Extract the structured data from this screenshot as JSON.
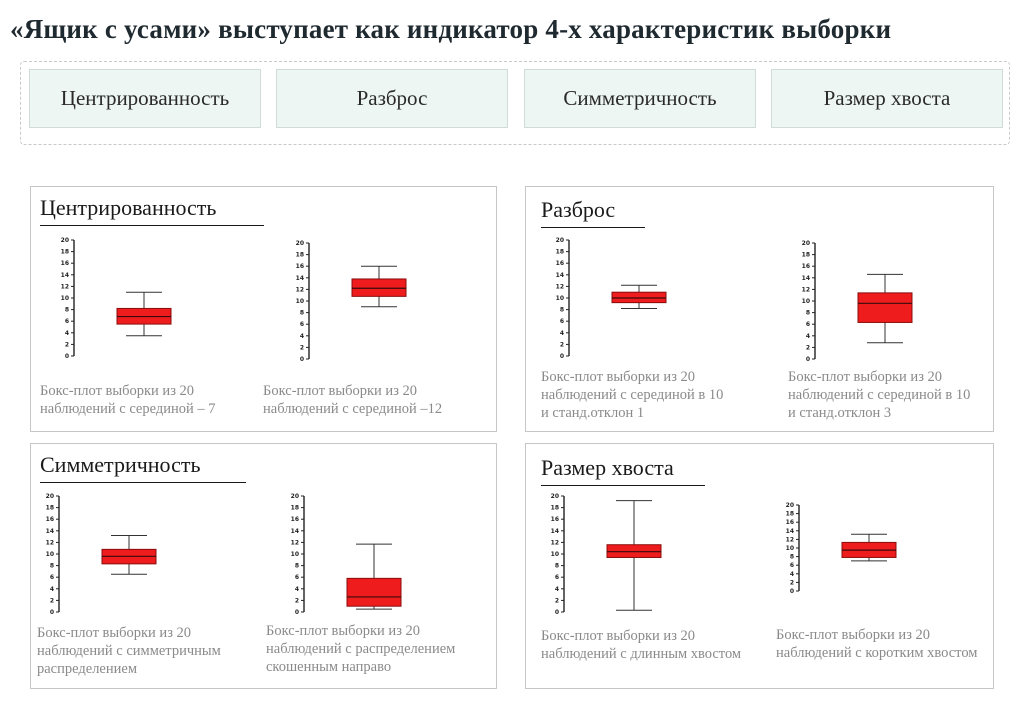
{
  "title": "«Ящик с усами» выступает как индикатор 4-х характеристик выборки",
  "tabs": [
    "Центрированность",
    "Разброс",
    "Симметричность",
    "Размер хвоста"
  ],
  "panels": [
    {
      "title": "Центрированность",
      "captions": [
        [
          "Бокс-плот выборки из 20",
          "наблюдений с серединой – 7"
        ],
        [
          "Бокс-плот выборки из 20",
          "наблюдений с серединой –12"
        ]
      ]
    },
    {
      "title": "Разброс",
      "captions": [
        [
          "Бокс-плот выборки из 20",
          "наблюдений с серединой  в 10",
          "и станд.отклон  1"
        ],
        [
          "Бокс-плот выборки из 20",
          "наблюдений с серединой  в 10",
          "и станд.отклон  3"
        ]
      ]
    },
    {
      "title": "Симметричность",
      "captions": [
        [
          "Бокс-плот выборки из 20",
          "наблюдений с симметричным",
          "распределением"
        ],
        [
          "Бокс-плот выборки из 20",
          "наблюдений с распределением",
          "скошенным направо"
        ]
      ]
    },
    {
      "title": "Размер хвоста",
      "captions": [
        [
          "Бокс-плот выборки из 20",
          "наблюдений с длинным хвостом"
        ],
        [
          "Бокс-плот выборки из 20",
          "наблюдений с коротким хвостом"
        ]
      ]
    }
  ],
  "chart_data": [
    {
      "type": "box",
      "ylim": [
        0,
        20
      ],
      "yticks": [
        "0",
        "2",
        "4",
        "6",
        "8",
        "10",
        "12",
        "14",
        "16",
        "18",
        "20"
      ],
      "min": 3.5,
      "q1": 5.5,
      "median": 6.8,
      "q3": 8.2,
      "max": 11
    },
    {
      "type": "box",
      "ylim": [
        0,
        20
      ],
      "yticks": [
        "0",
        "2",
        "4",
        "6",
        "8",
        "10",
        "12",
        "14",
        "16",
        "18",
        "20"
      ],
      "min": 9,
      "q1": 10.8,
      "median": 12.2,
      "q3": 13.8,
      "max": 16
    },
    {
      "type": "box",
      "ylim": [
        0,
        20
      ],
      "yticks": [
        "0",
        "2",
        "4",
        "6",
        "8",
        "10",
        "12",
        "14",
        "16",
        "18",
        "20"
      ],
      "min": 8.2,
      "q1": 9.2,
      "median": 10,
      "q3": 11,
      "max": 12.2
    },
    {
      "type": "box",
      "ylim": [
        0,
        20
      ],
      "yticks": [
        "0",
        "2",
        "4",
        "6",
        "8",
        "10",
        "12",
        "14",
        "16",
        "18",
        "20"
      ],
      "min": 2.8,
      "q1": 6.3,
      "median": 9.6,
      "q3": 11.4,
      "max": 14.6
    },
    {
      "type": "box",
      "ylim": [
        0,
        20
      ],
      "yticks": [
        "0",
        "2",
        "4",
        "6",
        "8",
        "10",
        "12",
        "14",
        "16",
        "18",
        "20"
      ],
      "min": 6.5,
      "q1": 8.3,
      "median": 9.6,
      "q3": 10.8,
      "max": 13.2
    },
    {
      "type": "box",
      "ylim": [
        0,
        20
      ],
      "yticks": [
        "0",
        "2",
        "4",
        "6",
        "8",
        "10",
        "12",
        "14",
        "16",
        "18",
        "20"
      ],
      "min": 0.5,
      "q1": 1,
      "median": 2.6,
      "q3": 5.8,
      "max": 11.7
    },
    {
      "type": "box",
      "ylim": [
        0,
        20
      ],
      "yticks": [
        "0",
        "2",
        "4",
        "6",
        "8",
        "10",
        "12",
        "14",
        "16",
        "18",
        "20"
      ],
      "min": 0.3,
      "q1": 9.4,
      "median": 10.4,
      "q3": 11.6,
      "max": 19.2
    },
    {
      "type": "box",
      "ylim": [
        0,
        20
      ],
      "yticks": [
        "0",
        "2",
        "4",
        "6",
        "8",
        "10",
        "12",
        "14",
        "16",
        "18",
        "20"
      ],
      "min": 7,
      "q1": 7.8,
      "median": 9.5,
      "q3": 11.3,
      "max": 13.2
    }
  ]
}
